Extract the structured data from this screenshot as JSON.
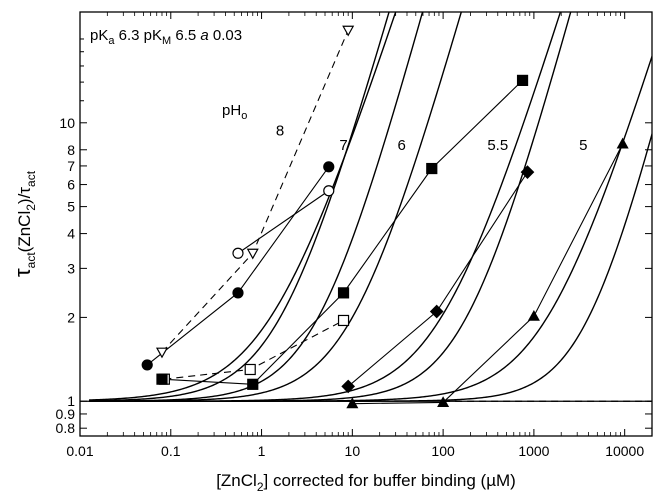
{
  "chart_data": {
    "type": "scatter",
    "xscale": "log",
    "yscale": "log",
    "xlim": [
      0.01,
      20000
    ],
    "ylim": [
      0.75,
      25
    ],
    "xlabel_main": "[ZnCl",
    "xlabel_sub": "2",
    "xlabel_rest": "] corrected for buffer binding (µM)",
    "ylabel": {
      "tau": "τ",
      "act_sub": "act",
      "zn": "(ZnCl",
      "two": "2",
      "close": ")/τ",
      "act2": "act"
    },
    "legend_text": {
      "pka_label": "pK",
      "pka_sub": "a",
      "pka_val": " 6.3  pK",
      "pkm_sub": "M",
      "pkm_val": " 6.5  ",
      "a_italic": "a",
      "a_val": " 0.03"
    },
    "pho_label": "pH",
    "pho_sub": "o",
    "x_ticks": [
      "0.01",
      "0.1",
      "1",
      "10",
      "100",
      "1000",
      "10000"
    ],
    "y_ticks": [
      "0.8",
      "0.9",
      "1",
      "2",
      "3",
      "4",
      "5",
      "6",
      "7",
      "8",
      "10"
    ],
    "x_tick_values": [
      0.01,
      0.1,
      1,
      10,
      100,
      1000,
      10000
    ],
    "y_tick_values": [
      0.8,
      0.9,
      1,
      2,
      3,
      4,
      5,
      6,
      7,
      8,
      10
    ],
    "curve_labels": [
      {
        "text": "8",
        "x": 1.6,
        "y": 9.0
      },
      {
        "text": "7",
        "x": 8.0,
        "y": 8.0
      },
      {
        "text": "6",
        "x": 35,
        "y": 8.0
      },
      {
        "text": "5.5",
        "x": 400,
        "y": 8.0
      },
      {
        "text": "5",
        "x": 3500,
        "y": 8.0
      }
    ],
    "theory_curves": [
      {
        "K": 1.25,
        "n": 1.0,
        "A": 6.0
      },
      {
        "K": 1.6,
        "n": 1.15,
        "A": 6.0
      },
      {
        "K": 4.2,
        "n": 1.2,
        "A": 6.0
      },
      {
        "K": 10.0,
        "n": 1.15,
        "A": 4.0
      },
      {
        "K": 95,
        "n": 1.05,
        "A": 3.5
      },
      {
        "K": 180,
        "n": 1.2,
        "A": 5.0
      },
      {
        "K": 1400,
        "n": 1.05,
        "A": 3.5
      },
      {
        "K": 4000,
        "n": 1.3,
        "A": 7.0
      }
    ],
    "series": [
      {
        "name": "pH 8",
        "marker": "triangle-down-open",
        "dashed": true,
        "x": [
          0.08,
          0.8,
          9.0
        ],
        "y": [
          1.5,
          3.4,
          21.5
        ]
      },
      {
        "name": "pH 8",
        "marker": "circle-open",
        "dashed": false,
        "x": [
          0.55,
          5.5
        ],
        "y": [
          3.4,
          5.7
        ]
      },
      {
        "name": "pH 7",
        "marker": "circle-filled",
        "dashed": false,
        "x": [
          0.055,
          0.55,
          5.5
        ],
        "y": [
          1.35,
          2.45,
          6.95
        ]
      },
      {
        "name": "pH 7",
        "marker": "square-open",
        "dashed": true,
        "x": [
          0.085,
          0.75,
          8.0
        ],
        "y": [
          1.2,
          1.3,
          1.95
        ]
      },
      {
        "name": "pH 6",
        "marker": "square-filled",
        "dashed": false,
        "x": [
          0.08,
          0.8,
          8.0,
          75,
          750
        ],
        "y": [
          1.2,
          1.15,
          2.45,
          6.85,
          14.2
        ]
      },
      {
        "name": "pH 5.5",
        "marker": "diamond-filled",
        "dashed": false,
        "x": [
          9.0,
          85,
          850
        ],
        "y": [
          1.13,
          2.1,
          6.65
        ]
      },
      {
        "name": "pH 5",
        "marker": "triangle-up-filled",
        "dashed": false,
        "x": [
          10,
          100,
          1000,
          9500
        ],
        "y": [
          0.98,
          0.99,
          2.02,
          8.4
        ]
      }
    ],
    "baseline": {
      "y": 1.0,
      "dashed_from": 10,
      "dashed_to": 100
    }
  }
}
